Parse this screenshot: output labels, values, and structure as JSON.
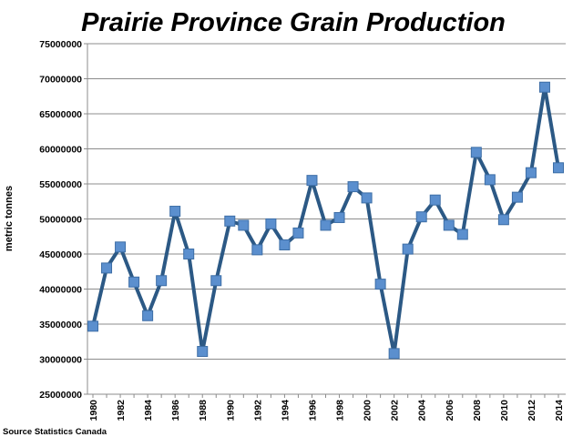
{
  "chart_data": {
    "type": "line",
    "title": "Prairie Province Grain Production",
    "ylabel": "metric tonnes",
    "xlabel": "",
    "source": "Source Statistics Canada",
    "ylim": [
      25000000,
      75000000
    ],
    "y_ticks": [
      "25000000",
      "30000000",
      "35000000",
      "40000000",
      "45000000",
      "50000000",
      "55000000",
      "60000000",
      "65000000",
      "70000000",
      "75000000"
    ],
    "x_tick_labels": [
      "1980",
      "1982",
      "1984",
      "1986",
      "1988",
      "1990",
      "1992",
      "1994",
      "1996",
      "1998",
      "2000",
      "2002",
      "2004",
      "2006",
      "2008",
      "2010",
      "2012",
      "2014"
    ],
    "grid": "horizontal",
    "legend": "none",
    "line_color": "#2c5985",
    "marker_color": "#5b8fce",
    "marker_edge_color": "#3d6ea6",
    "x": [
      1980,
      1981,
      1982,
      1983,
      1984,
      1985,
      1986,
      1987,
      1988,
      1989,
      1990,
      1991,
      1992,
      1993,
      1994,
      1995,
      1996,
      1997,
      1998,
      1999,
      2000,
      2001,
      2002,
      2003,
      2004,
      2005,
      2006,
      2007,
      2008,
      2009,
      2010,
      2011,
      2012,
      2013,
      2014
    ],
    "series": [
      {
        "values": [
          34700000,
          43000000,
          46000000,
          41000000,
          36200000,
          41200000,
          51100000,
          45000000,
          31100000,
          41200000,
          49700000,
          49100000,
          45600000,
          49300000,
          46300000,
          48000000,
          55500000,
          49100000,
          50200000,
          54600000,
          53000000,
          40700000,
          30800000,
          45700000,
          50300000,
          52700000,
          49100000,
          47800000,
          59500000,
          55600000,
          49900000,
          53100000,
          56600000,
          68800000,
          57300000
        ]
      }
    ]
  }
}
